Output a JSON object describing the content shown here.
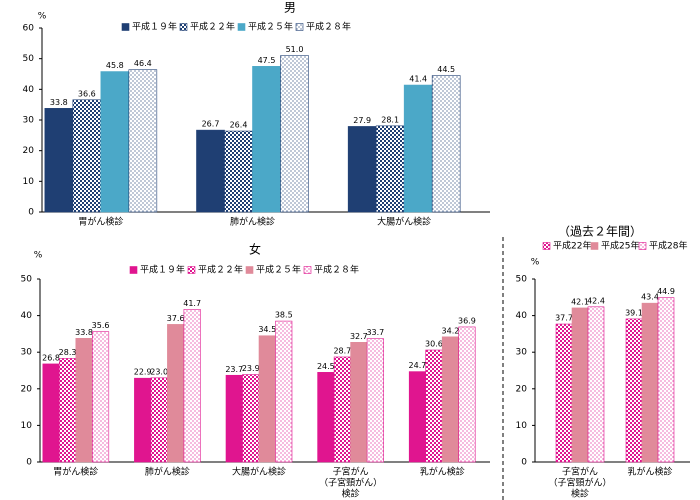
{
  "chart_data": [
    {
      "type": "bar",
      "title": "男",
      "y_label": "%",
      "categories": [
        "胃がん検診",
        "肺がん検診",
        "大腸がん検診"
      ],
      "series": [
        {
          "name": "平成１９年",
          "color": "#1f3f73",
          "pattern": "solid",
          "values": [
            33.8,
            26.7,
            27.9
          ]
        },
        {
          "name": "平成２２年",
          "color": "#1f3f73",
          "pattern": "checker",
          "values": [
            36.6,
            26.4,
            28.1
          ]
        },
        {
          "name": "平成２５年",
          "color": "#4ba8c8",
          "pattern": "solid",
          "values": [
            45.8,
            47.5,
            41.4
          ]
        },
        {
          "name": "平成２８年",
          "color": "#1f3f73",
          "pattern": "dots",
          "values": [
            46.4,
            51,
            44.5
          ],
          "value_labels": [
            "46.4",
            "51.0",
            "44.5"
          ]
        }
      ],
      "ylim": [
        0,
        60
      ],
      "yticks": [
        0,
        10,
        20,
        30,
        40,
        50,
        60
      ],
      "grid": false
    },
    {
      "type": "bar",
      "title": "女",
      "y_label": "%",
      "categories": [
        "胃がん検診",
        "肺がん検診",
        "大腸がん検診",
        [
          "子宮がん",
          "（子宮頸がん）",
          "検診"
        ],
        "乳がん検診"
      ],
      "series": [
        {
          "name": "平成１９年",
          "color": "#e0158f",
          "pattern": "solid",
          "values": [
            26.8,
            22.9,
            23.7,
            24.5,
            24.7
          ]
        },
        {
          "name": "平成２２年",
          "color": "#e0158f",
          "pattern": "checker",
          "values": [
            28.3,
            23,
            23.9,
            28.7,
            30.6
          ],
          "value_labels": [
            "28.3",
            "23.0",
            "23.9",
            "28.7",
            "30.6"
          ]
        },
        {
          "name": "平成２５年",
          "color": "#e08a9a",
          "pattern": "solid",
          "values": [
            33.8,
            37.6,
            34.5,
            32.7,
            34.2
          ]
        },
        {
          "name": "平成２８年",
          "color": "#e0158f",
          "pattern": "dots",
          "values": [
            35.6,
            41.7,
            38.5,
            33.7,
            36.9
          ]
        }
      ],
      "ylim": [
        0,
        50
      ],
      "yticks": [
        0,
        10,
        20,
        30,
        40,
        50
      ],
      "grid": false
    },
    {
      "type": "bar",
      "title": "（過去２年間）",
      "y_label": "%",
      "categories": [
        [
          "子宮がん",
          "（子宮頸がん）",
          "検診"
        ],
        "乳がん検診"
      ],
      "series": [
        {
          "name": "平成22年",
          "color": "#e0158f",
          "pattern": "checker",
          "values": [
            37.7,
            39.1
          ]
        },
        {
          "name": "平成25年",
          "color": "#e08a9a",
          "pattern": "solid",
          "values": [
            42.1,
            43.4
          ]
        },
        {
          "name": "平成28年",
          "color": "#e0158f",
          "pattern": "dots",
          "values": [
            42.4,
            44.9
          ]
        }
      ],
      "ylim": [
        0,
        50
      ],
      "yticks": [
        0,
        10,
        20,
        30,
        40,
        50
      ],
      "grid": false
    }
  ]
}
